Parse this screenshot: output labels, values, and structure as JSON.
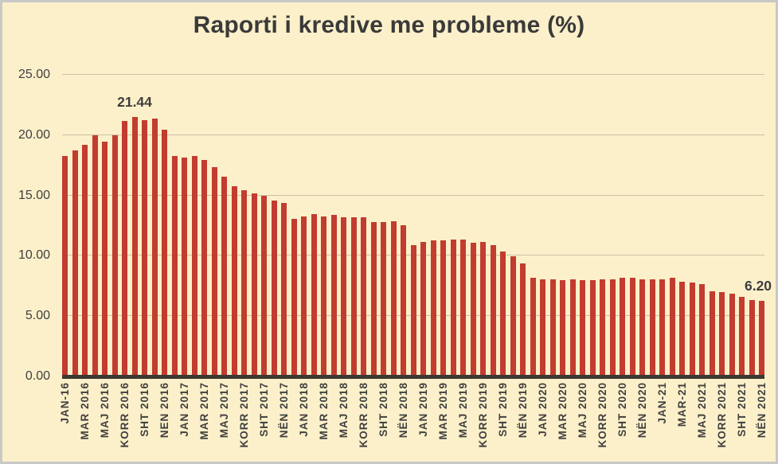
{
  "title": "Raporti i kredive me probleme (%)",
  "colors": {
    "background": "#FCF0CA",
    "frame_border": "#C8C8C4",
    "bar": "#C23C30",
    "gridline": "#CBC1A6",
    "axis_line": "#3C3832",
    "text": "#3F3F3F"
  },
  "chart_data": {
    "type": "bar",
    "title": "Raporti i kredive me probleme (%)",
    "ylabel": "",
    "xlabel": "",
    "ylim": [
      0,
      25
    ],
    "grid": true,
    "legend": false,
    "y_tick_labels": [
      "25.00",
      "20.00",
      "15.00",
      "10.00",
      "5.00",
      "0.00"
    ],
    "x_tick_labels": [
      "JAN-16",
      "MAR 2016",
      "MAJ 2016",
      "KORR 2016",
      "SHT 2016",
      "NEN 2016",
      "JAN 2017",
      "MAR 2017",
      "MAJ 2017",
      "KORR 2017",
      "SHT 2017",
      "NËN 2017",
      "JAN 2018",
      "MAR 2018",
      "MAJ 2018",
      "KORR 2018",
      "SHT 2018",
      "NËN 2018",
      "JAN 2019",
      "MAR 2019",
      "MAJ 2019",
      "KORR 2019",
      "SHT 2019",
      "NËN 2019",
      "JAN 2020",
      "MAR 2020",
      "MAJ 2020",
      "KORR 2020",
      "SHT 2020",
      "NËN 2020",
      "JAN-21",
      "MAR-21",
      "MAJ 2021",
      "KORR 2021",
      "SHT 2021",
      "NËN 2021"
    ],
    "x_tick_every": 2,
    "values": [
      18.2,
      18.7,
      19.1,
      19.9,
      19.4,
      19.9,
      21.1,
      21.44,
      21.2,
      21.3,
      20.4,
      18.2,
      18.1,
      18.2,
      17.9,
      17.3,
      16.5,
      15.7,
      15.4,
      15.1,
      14.9,
      14.5,
      14.3,
      13.0,
      13.2,
      13.4,
      13.2,
      13.3,
      13.1,
      13.1,
      13.1,
      12.7,
      12.7,
      12.8,
      12.5,
      10.8,
      11.1,
      11.2,
      11.2,
      11.3,
      11.3,
      11.0,
      11.1,
      10.8,
      10.3,
      9.9,
      9.3,
      8.1,
      8.0,
      8.0,
      7.9,
      8.0,
      7.9,
      7.9,
      8.0,
      8.0,
      8.1,
      8.1,
      8.0,
      8.0,
      8.0,
      8.1,
      7.8,
      7.7,
      7.6,
      7.0,
      6.9,
      6.8,
      6.5,
      6.3,
      6.2
    ],
    "annotations": [
      {
        "text": "21.44",
        "bar_index": 7
      },
      {
        "text": "6.20",
        "bar_index": 70
      }
    ]
  }
}
